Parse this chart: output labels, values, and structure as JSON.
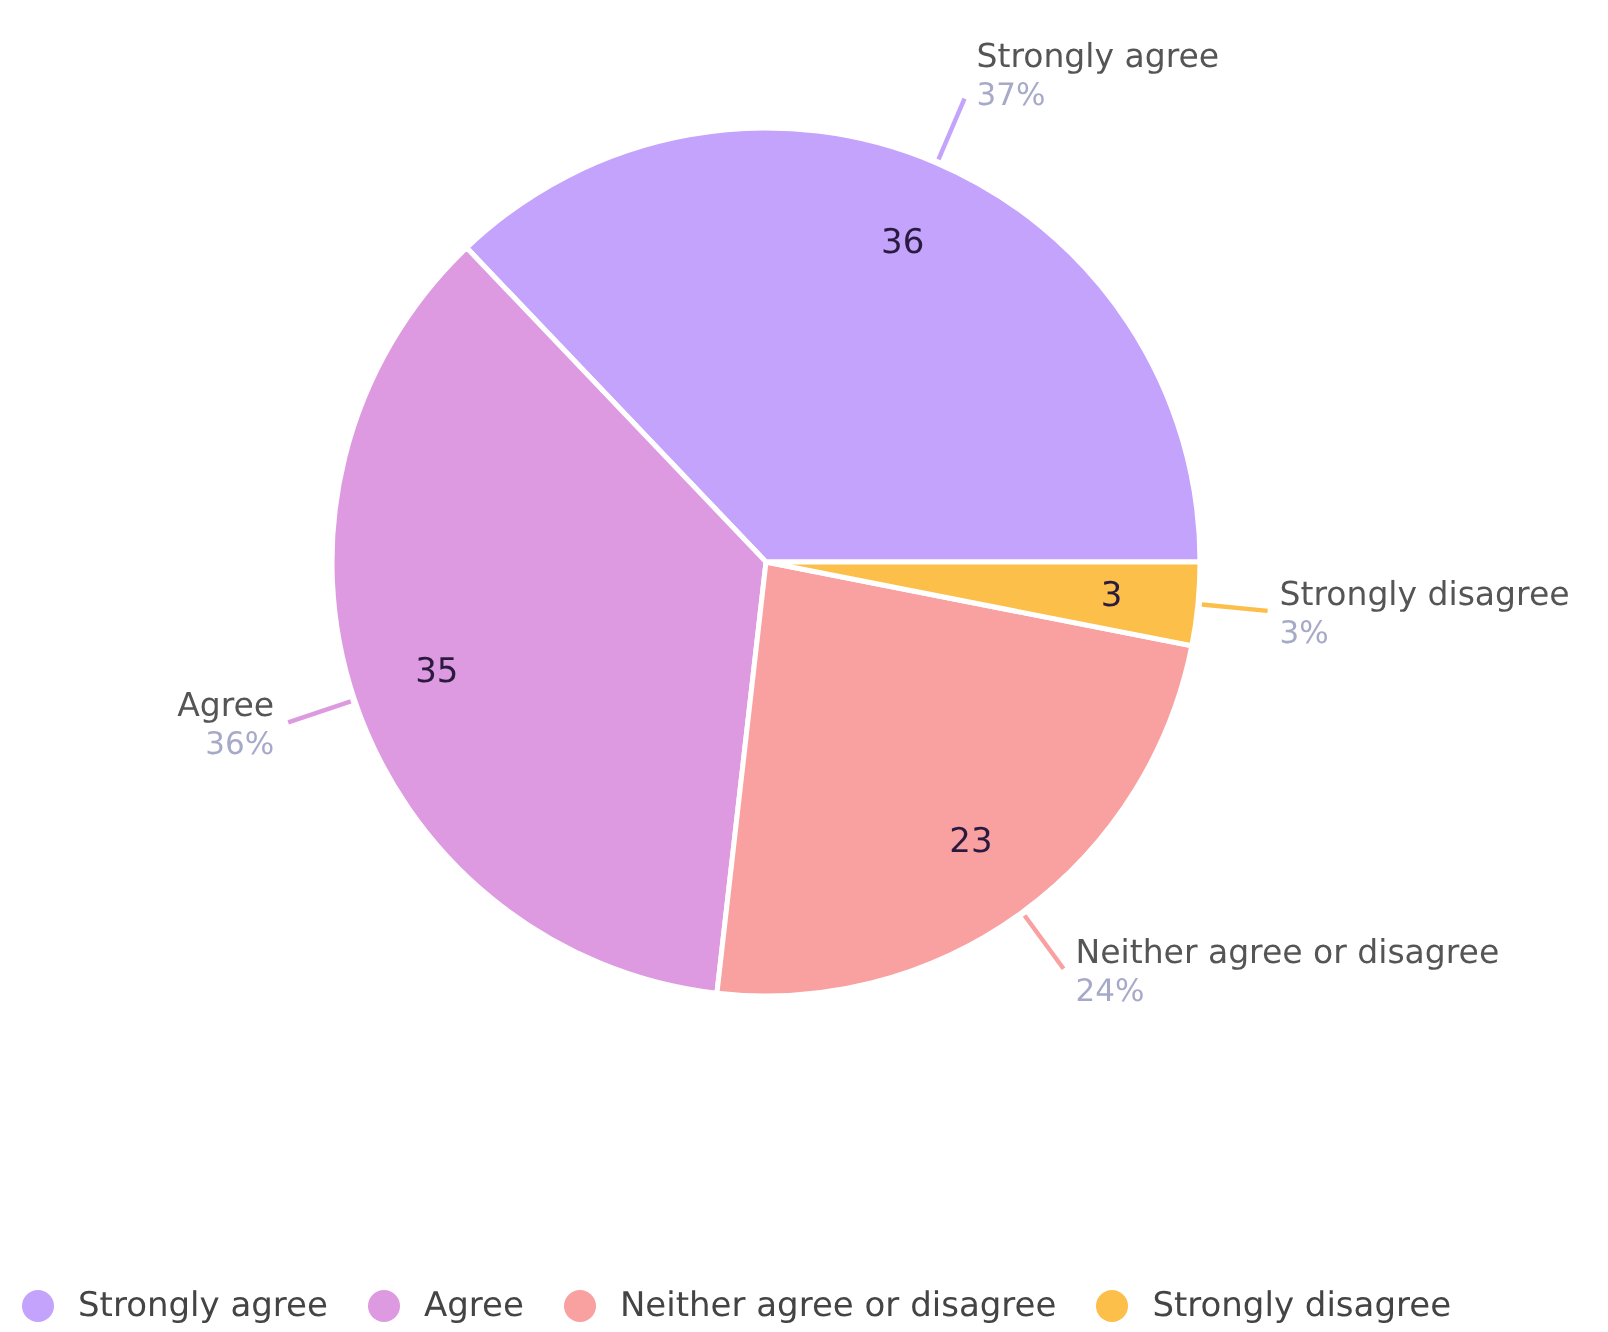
{
  "chart_data": {
    "type": "pie",
    "categories": [
      "Strongly agree",
      "Agree",
      "Neither agree or disagree",
      "Strongly disagree"
    ],
    "values": [
      36,
      35,
      23,
      3
    ],
    "colors": [
      "#c4a3fc",
      "#dd9ae0",
      "#f9a0a0",
      "#fbbf4a"
    ],
    "data_labels": true,
    "annotations": [
      "37%",
      "36%",
      "24%",
      "3%"
    ],
    "legend": "bottom"
  }
}
